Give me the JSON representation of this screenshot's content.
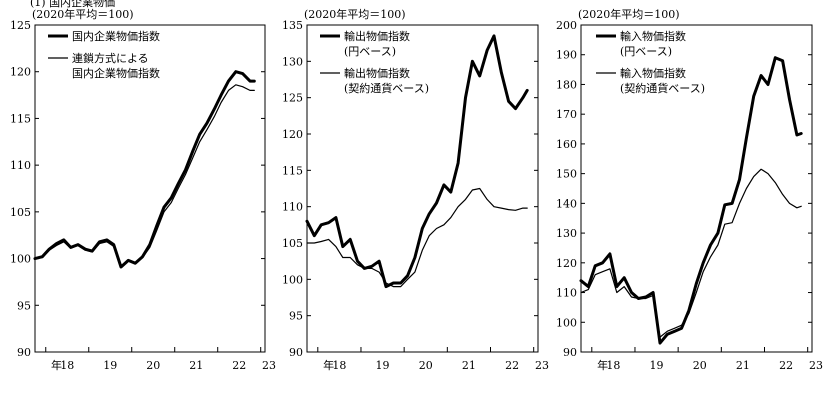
{
  "page_fragment": "(1) 国内企業物価",
  "chart_data": [
    {
      "type": "line",
      "unit_note": "(2020年平均＝100)",
      "ylim": [
        90,
        125
      ],
      "yticks": [
        90,
        95,
        100,
        105,
        110,
        115,
        120,
        125
      ],
      "x_range": [
        2017.75,
        2023.1
      ],
      "x_tick_labels": [
        {
          "label": "18",
          "x": 2018.0
        },
        {
          "label": "年",
          "x": 2018.25
        },
        {
          "label": "19",
          "x": 2019.0
        },
        {
          "label": "20",
          "x": 2020.0
        },
        {
          "label": "21",
          "x": 2021.0
        },
        {
          "label": "22",
          "x": 2022.0
        },
        {
          "label": "23",
          "x": 2023.0
        }
      ],
      "legend_position": "top-left",
      "series": [
        {
          "name": "国内企業物価指数",
          "legend_lines": [
            "国内企業物価指数"
          ],
          "width": 3,
          "x": [
            2017.75,
            2017.92,
            2018.08,
            2018.25,
            2018.42,
            2018.58,
            2018.75,
            2018.92,
            2019.08,
            2019.25,
            2019.42,
            2019.58,
            2019.75,
            2019.92,
            2020.08,
            2020.25,
            2020.42,
            2020.58,
            2020.75,
            2020.92,
            2021.08,
            2021.25,
            2021.42,
            2021.58,
            2021.75,
            2021.92,
            2022.08,
            2022.25,
            2022.42,
            2022.58,
            2022.75,
            2022.85
          ],
          "y": [
            100.0,
            100.2,
            101.0,
            101.6,
            102.0,
            101.2,
            101.5,
            101.0,
            100.8,
            101.8,
            102.0,
            101.5,
            99.1,
            99.8,
            99.5,
            100.2,
            101.5,
            103.5,
            105.5,
            106.5,
            108.0,
            109.5,
            111.5,
            113.3,
            114.5,
            116.0,
            117.5,
            119.0,
            120.0,
            119.8,
            119.0,
            119.0
          ]
        },
        {
          "name": "連鎖方式による国内企業物価指数",
          "legend_lines": [
            "連鎖方式による",
            "国内企業物価指数"
          ],
          "width": 1.2,
          "x": [
            2017.75,
            2017.92,
            2018.08,
            2018.25,
            2018.42,
            2018.58,
            2018.75,
            2018.92,
            2019.08,
            2019.25,
            2019.42,
            2019.58,
            2019.75,
            2019.92,
            2020.08,
            2020.25,
            2020.42,
            2020.58,
            2020.75,
            2020.92,
            2021.08,
            2021.25,
            2021.42,
            2021.58,
            2021.75,
            2021.92,
            2022.08,
            2022.25,
            2022.42,
            2022.58,
            2022.75,
            2022.85
          ],
          "y": [
            100.0,
            100.1,
            100.9,
            101.4,
            101.8,
            101.1,
            101.4,
            100.9,
            100.7,
            101.6,
            101.8,
            101.3,
            99.2,
            99.8,
            99.5,
            100.1,
            101.2,
            103.0,
            105.0,
            106.0,
            107.5,
            109.0,
            110.8,
            112.5,
            113.8,
            115.2,
            116.7,
            118.0,
            118.6,
            118.4,
            118.0,
            118.0
          ]
        }
      ]
    },
    {
      "type": "line",
      "unit_note": "(2020年平均＝100)",
      "ylim": [
        90,
        135
      ],
      "yticks": [
        90,
        95,
        100,
        105,
        110,
        115,
        120,
        125,
        130,
        135
      ],
      "x_range": [
        2017.75,
        2023.1
      ],
      "x_tick_labels": [
        {
          "label": "18",
          "x": 2018.0
        },
        {
          "label": "年",
          "x": 2018.25
        },
        {
          "label": "19",
          "x": 2019.0
        },
        {
          "label": "20",
          "x": 2020.0
        },
        {
          "label": "21",
          "x": 2021.0
        },
        {
          "label": "22",
          "x": 2022.0
        },
        {
          "label": "23",
          "x": 2023.0
        }
      ],
      "legend_position": "top-left",
      "series": [
        {
          "name": "輸出物価指数（円ベース）",
          "legend_lines": [
            "輸出物価指数",
            "(円ベース)"
          ],
          "width": 3,
          "x": [
            2017.75,
            2017.92,
            2018.08,
            2018.25,
            2018.42,
            2018.58,
            2018.75,
            2018.92,
            2019.08,
            2019.25,
            2019.42,
            2019.58,
            2019.75,
            2019.92,
            2020.08,
            2020.25,
            2020.42,
            2020.58,
            2020.75,
            2020.92,
            2021.08,
            2021.25,
            2021.42,
            2021.58,
            2021.75,
            2021.92,
            2022.08,
            2022.25,
            2022.42,
            2022.58,
            2022.75,
            2022.85
          ],
          "y": [
            108.0,
            106.0,
            107.5,
            107.8,
            108.5,
            104.5,
            105.5,
            102.5,
            101.5,
            101.8,
            102.5,
            99.0,
            99.5,
            99.5,
            100.5,
            103.0,
            107.0,
            109.0,
            110.5,
            113.0,
            112.0,
            116.0,
            125.0,
            130.0,
            128.0,
            131.5,
            133.5,
            128.5,
            124.5,
            123.5,
            125.0,
            126.0
          ]
        },
        {
          "name": "輸出物価指数（契約通貨ベース）",
          "legend_lines": [
            "輸出物価指数",
            "(契約通貨ベース)"
          ],
          "width": 1.2,
          "x": [
            2017.75,
            2017.92,
            2018.08,
            2018.25,
            2018.42,
            2018.58,
            2018.75,
            2018.92,
            2019.08,
            2019.25,
            2019.42,
            2019.58,
            2019.75,
            2019.92,
            2020.08,
            2020.25,
            2020.42,
            2020.58,
            2020.75,
            2020.92,
            2021.08,
            2021.25,
            2021.42,
            2021.58,
            2021.75,
            2021.92,
            2022.08,
            2022.25,
            2022.42,
            2022.58,
            2022.75,
            2022.85
          ],
          "y": [
            105.0,
            105.0,
            105.2,
            105.5,
            104.5,
            103.0,
            103.0,
            102.0,
            101.5,
            101.5,
            101.0,
            99.5,
            99.0,
            99.0,
            100.0,
            101.0,
            104.0,
            106.0,
            107.0,
            107.5,
            108.5,
            110.0,
            111.0,
            112.3,
            112.5,
            111.0,
            110.0,
            109.8,
            109.6,
            109.5,
            109.8,
            109.8
          ]
        }
      ]
    },
    {
      "type": "line",
      "unit_note": "(2020年平均＝100)",
      "ylim": [
        90,
        200
      ],
      "yticks": [
        90,
        100,
        110,
        120,
        130,
        140,
        150,
        160,
        170,
        180,
        190,
        200
      ],
      "x_range": [
        2017.75,
        2023.1
      ],
      "x_tick_labels": [
        {
          "label": "18",
          "x": 2018.0
        },
        {
          "label": "年",
          "x": 2018.25
        },
        {
          "label": "19",
          "x": 2019.0
        },
        {
          "label": "20",
          "x": 2020.0
        },
        {
          "label": "21",
          "x": 2021.0
        },
        {
          "label": "22",
          "x": 2022.0
        },
        {
          "label": "23",
          "x": 2023.0
        }
      ],
      "legend_position": "top-left",
      "series": [
        {
          "name": "輸入物価指数（円ベース）",
          "legend_lines": [
            "輸入物価指数",
            "(円ベース)"
          ],
          "width": 3,
          "x": [
            2017.75,
            2017.92,
            2018.08,
            2018.25,
            2018.42,
            2018.58,
            2018.75,
            2018.92,
            2019.08,
            2019.25,
            2019.42,
            2019.58,
            2019.75,
            2019.92,
            2020.08,
            2020.25,
            2020.42,
            2020.58,
            2020.75,
            2020.92,
            2021.08,
            2021.25,
            2021.42,
            2021.58,
            2021.75,
            2021.92,
            2022.08,
            2022.25,
            2022.42,
            2022.58,
            2022.75,
            2022.85
          ],
          "y": [
            114.0,
            112.0,
            119.0,
            120.0,
            123.0,
            112.0,
            115.0,
            110.0,
            108.0,
            108.5,
            110.0,
            93.0,
            96.0,
            97.0,
            98.0,
            104.0,
            113.0,
            120.0,
            126.0,
            130.0,
            139.5,
            140.0,
            148.0,
            162.0,
            176.0,
            183.0,
            180.0,
            189.0,
            188.0,
            175.0,
            163.0,
            163.5
          ]
        },
        {
          "name": "輸入物価指数（契約通貨ベース）",
          "legend_lines": [
            "輸入物価指数",
            "(契約通貨ベース)"
          ],
          "width": 1.2,
          "x": [
            2017.75,
            2017.92,
            2018.08,
            2018.25,
            2018.42,
            2018.58,
            2018.75,
            2018.92,
            2019.08,
            2019.25,
            2019.42,
            2019.58,
            2019.75,
            2019.92,
            2020.08,
            2020.25,
            2020.42,
            2020.58,
            2020.75,
            2020.92,
            2021.08,
            2021.25,
            2021.42,
            2021.58,
            2021.75,
            2021.92,
            2022.08,
            2022.25,
            2022.42,
            2022.58,
            2022.75,
            2022.85
          ],
          "y": [
            110.0,
            111.0,
            116.0,
            117.0,
            118.0,
            110.0,
            112.0,
            108.5,
            108.0,
            108.0,
            109.0,
            95.0,
            97.0,
            98.0,
            99.0,
            103.0,
            110.0,
            117.0,
            122.0,
            126.0,
            133.0,
            133.5,
            140.0,
            145.0,
            149.0,
            151.5,
            150.0,
            147.0,
            143.0,
            140.0,
            138.5,
            139.0
          ]
        }
      ]
    }
  ]
}
